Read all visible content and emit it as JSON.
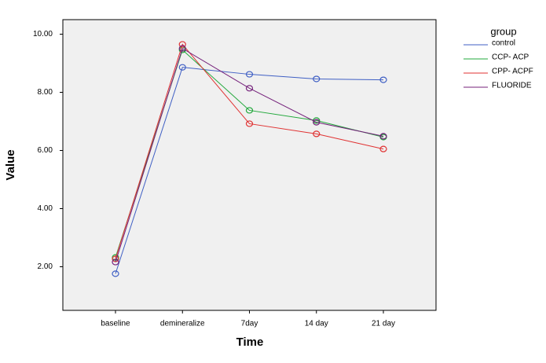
{
  "chart_data": {
    "type": "line",
    "x_label": "Time",
    "y_label": "Value",
    "legend_title": "group",
    "categories": [
      "baseline",
      "demineralize",
      "7day",
      "14 day",
      "21 day"
    ],
    "series": [
      {
        "name": "control",
        "color": "#3f5fc4",
        "values": [
          1.76,
          8.86,
          8.62,
          8.46,
          8.43
        ]
      },
      {
        "name": "CCP- ACP",
        "color": "#22a83c",
        "values": [
          2.32,
          9.46,
          7.38,
          7.03,
          6.46
        ]
      },
      {
        "name": "CPP- ACPF",
        "color": "#e03232",
        "values": [
          2.27,
          9.65,
          6.92,
          6.57,
          6.05
        ]
      },
      {
        "name": "FLUORIDE",
        "color": "#74207a",
        "values": [
          2.16,
          9.51,
          8.14,
          6.97,
          6.49
        ]
      }
    ],
    "ylim": [
      0.5,
      10.5
    ],
    "yticks": [
      {
        "value": 2,
        "label": "2.00"
      },
      {
        "value": 4,
        "label": "4.00"
      },
      {
        "value": 6,
        "label": "6.00"
      },
      {
        "value": 8,
        "label": "8.00"
      },
      {
        "value": 10,
        "label": "10.00"
      }
    ]
  }
}
